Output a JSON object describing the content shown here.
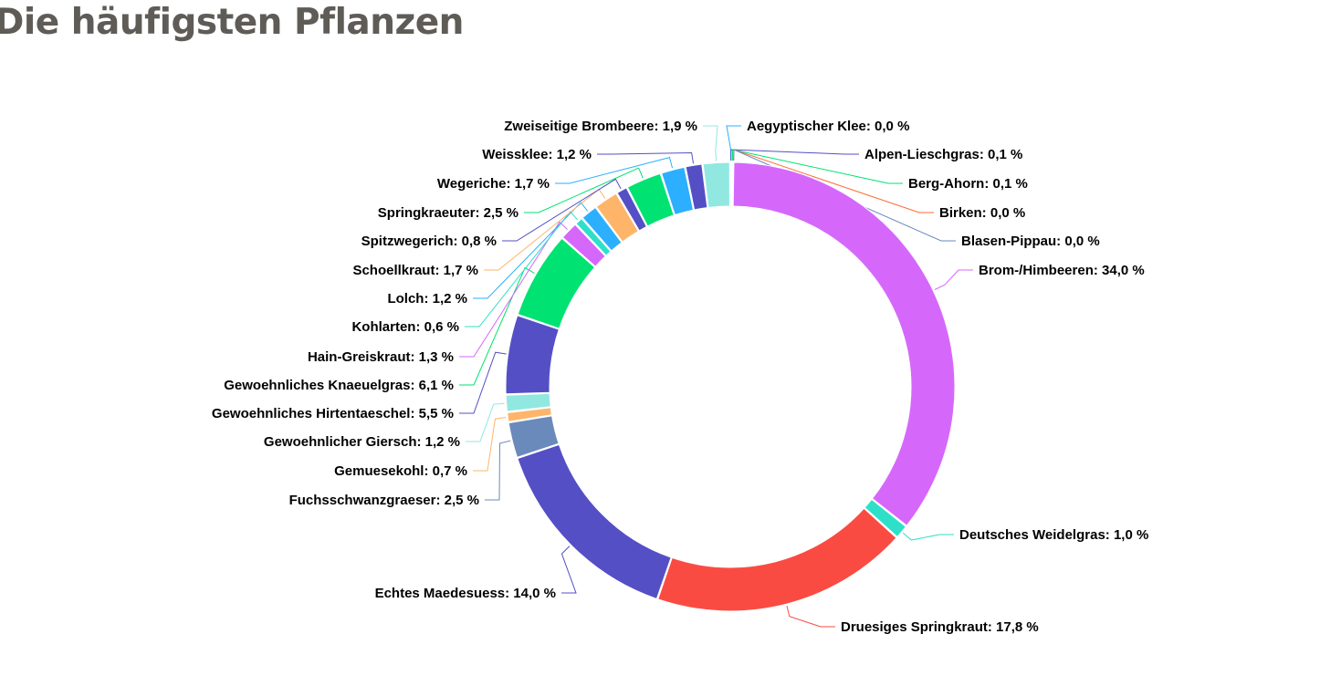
{
  "page": {
    "title": "Die häufigsten Pflanzen"
  },
  "chart_data": {
    "type": "pie",
    "variant": "donut",
    "title": "",
    "value_unit": "%",
    "start": "top, clockwise",
    "slices": [
      {
        "name": "Aegyptischer Klee",
        "value": 0.0,
        "label": "Aegyptischer Klee: 0,0 %",
        "color": "#2caffe"
      },
      {
        "name": "Alpen-Lieschgras",
        "value": 0.1,
        "label": "Alpen-Lieschgras: 0,1 %",
        "color": "#544fc5"
      },
      {
        "name": "Berg-Ahorn",
        "value": 0.1,
        "label": "Berg-Ahorn: 0,1 %",
        "color": "#00e272"
      },
      {
        "name": "Birken",
        "value": 0.0,
        "label": "Birken: 0,0 %",
        "color": "#fe6a35"
      },
      {
        "name": "Blasen-Pippau",
        "value": 0.0,
        "label": "Blasen-Pippau: 0,0 %",
        "color": "#6b8abc"
      },
      {
        "name": "Brom-/Himbeeren",
        "value": 34.0,
        "label": "Brom-/Himbeeren: 34,0 %",
        "color": "#d568fb"
      },
      {
        "name": "Deutsches Weidelgras",
        "value": 1.0,
        "label": "Deutsches Weidelgras: 1,0 %",
        "color": "#2ee0ca"
      },
      {
        "name": "Druesiges Springkraut",
        "value": 17.8,
        "label": "Druesiges Springkraut: 17,8 %",
        "color": "#fa4b42"
      },
      {
        "name": "Echtes Maedesuess",
        "value": 14.0,
        "label": "Echtes Maedesuess: 14,0 %",
        "color": "#544fc5"
      },
      {
        "name": "Fuchsschwanzgraeser",
        "value": 2.5,
        "label": "Fuchsschwanzgraeser: 2,5 %",
        "color": "#6b8abc"
      },
      {
        "name": "Gemuesekohl",
        "value": 0.7,
        "label": "Gemuesekohl: 0,7 %",
        "color": "#feb56a"
      },
      {
        "name": "Gewoehnlicher Giersch",
        "value": 1.2,
        "label": "Gewoehnlicher Giersch: 1,2 %",
        "color": "#91e8e1"
      },
      {
        "name": "Gewoehnliches Hirtentaeschel",
        "value": 5.5,
        "label": "Gewoehnliches Hirtentaeschel: 5,5 %",
        "color": "#544fc5"
      },
      {
        "name": "Gewoehnliches Knaeuelgras",
        "value": 6.1,
        "label": "Gewoehnliches Knaeuelgras: 6,1 %",
        "color": "#00e272"
      },
      {
        "name": "Hain-Greiskraut",
        "value": 1.3,
        "label": "Hain-Greiskraut: 1,3 %",
        "color": "#d568fb"
      },
      {
        "name": "Kohlarten",
        "value": 0.6,
        "label": "Kohlarten: 0,6 %",
        "color": "#2ee0ca"
      },
      {
        "name": "Lolch",
        "value": 1.2,
        "label": "Lolch: 1,2 %",
        "color": "#2caffe"
      },
      {
        "name": "Schoellkraut",
        "value": 1.7,
        "label": "Schoellkraut: 1,7 %",
        "color": "#feb56a"
      },
      {
        "name": "Spitzwegerich",
        "value": 0.8,
        "label": "Spitzwegerich: 0,8 %",
        "color": "#544fc5"
      },
      {
        "name": "Springkraeuter",
        "value": 2.5,
        "label": "Springkraeuter: 2,5 %",
        "color": "#00e272"
      },
      {
        "name": "Wegeriche",
        "value": 1.7,
        "label": "Wegeriche: 1,7 %",
        "color": "#2caffe"
      },
      {
        "name": "Weissklee",
        "value": 1.2,
        "label": "Weissklee: 1,2 %",
        "color": "#544fc5"
      },
      {
        "name": "Zweiseitige Brombeere",
        "value": 1.9,
        "label": "Zweiseitige Brombeere: 1,9 %",
        "color": "#91e8e1"
      }
    ]
  }
}
